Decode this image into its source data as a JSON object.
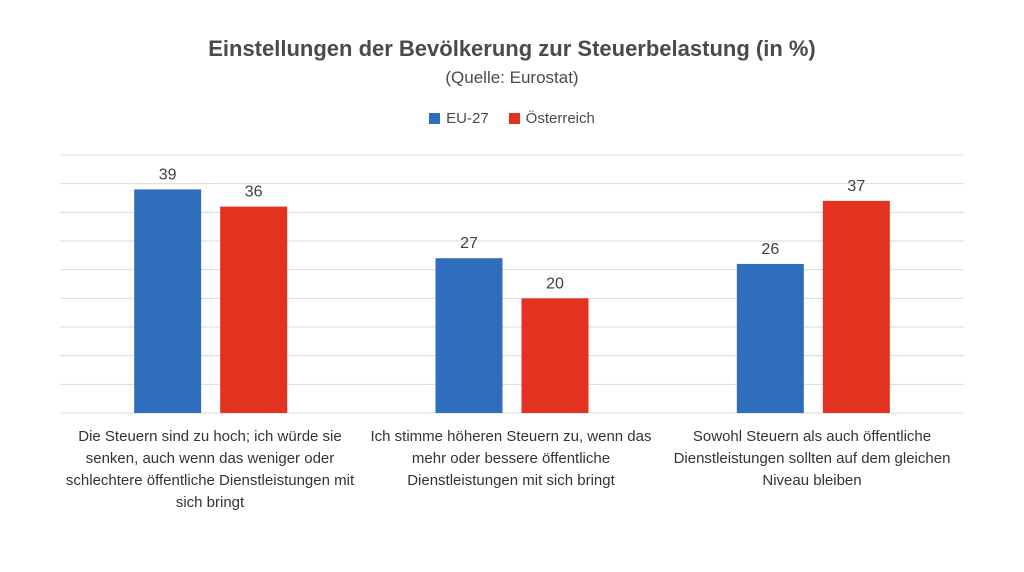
{
  "chart_data": {
    "type": "bar",
    "title": "Einstellungen der Bevölkerung zur Steuerbelastung (in %)",
    "subtitle": "(Quelle: Eurostat)",
    "categories": [
      "Die Steuern sind zu hoch; ich würde sie senken, auch wenn das weniger oder schlechtere öffentliche Dienstleistungen mit sich bringt",
      "Ich stimme höheren Steuern zu, wenn das mehr oder bessere öffentliche Dienstleistungen mit sich bringt",
      "Sowohl Steuern als auch öffentliche Dienstleistungen sollten auf dem gleichen Niveau bleiben"
    ],
    "series": [
      {
        "name": "EU-27",
        "values": [
          39,
          27,
          26
        ],
        "color": "#2f6ebd"
      },
      {
        "name": "Österreich",
        "values": [
          36,
          20,
          37
        ],
        "color": "#e3321f"
      }
    ],
    "ylim": [
      0,
      45
    ],
    "grid": true,
    "legend_position": "top",
    "data_labels": true
  }
}
